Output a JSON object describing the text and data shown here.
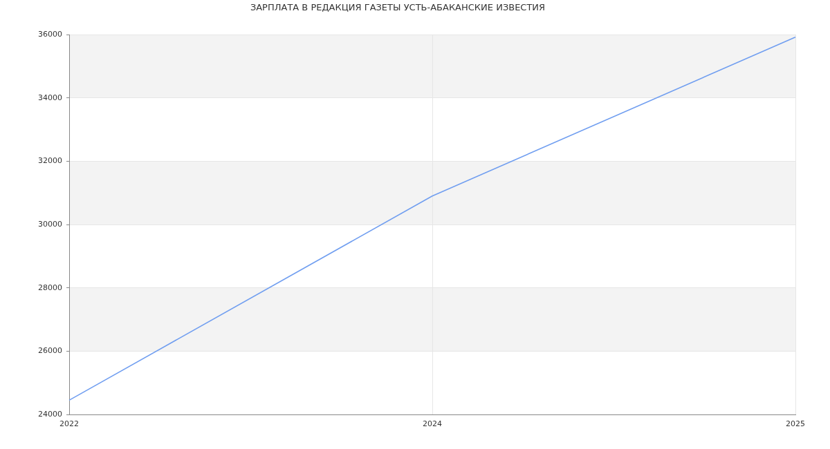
{
  "chart_data": {
    "type": "line",
    "title": "ЗАРПЛАТА В РЕДАКЦИЯ ГАЗЕТЫ УСТЬ-АБАКАНСКИЕ ИЗВЕСТИЯ",
    "categories": [
      "2022",
      "2024",
      "2025"
    ],
    "series": [
      {
        "color": "#709ef0",
        "values": [
          24450,
          30900,
          35920
        ]
      }
    ],
    "ylim": [
      24000,
      36000
    ],
    "yticks": [
      24000,
      26000,
      28000,
      30000,
      32000,
      34000,
      36000
    ],
    "grid": true,
    "marker": "none",
    "line_style": "solid"
  }
}
